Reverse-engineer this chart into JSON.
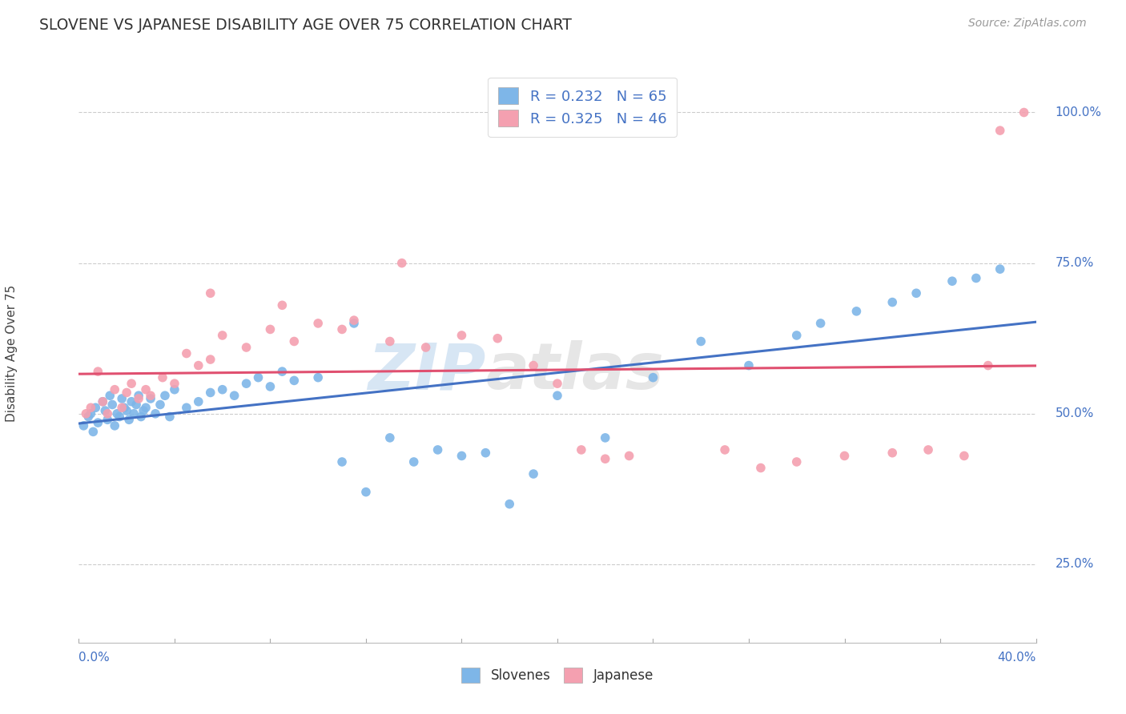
{
  "title": "SLOVENE VS JAPANESE DISABILITY AGE OVER 75 CORRELATION CHART",
  "source": "Source: ZipAtlas.com",
  "ylabel": "Disability Age Over 75",
  "xlim": [
    0.0,
    40.0
  ],
  "ylim": [
    12.0,
    108.0
  ],
  "ytick_vals": [
    25.0,
    50.0,
    75.0,
    100.0
  ],
  "ytick_labels": [
    "25.0%",
    "50.0%",
    "75.0%",
    "100.0%"
  ],
  "slovene_color": "#7EB6E8",
  "japanese_color": "#F4A0B0",
  "slovene_line_color": "#4472C4",
  "japanese_line_color": "#E05070",
  "slovene_R": 0.232,
  "slovene_N": 65,
  "japanese_R": 0.325,
  "japanese_N": 46,
  "legend_label_slovene": "Slovenes",
  "legend_label_japanese": "Japanese",
  "watermark_zip": "ZIP",
  "watermark_atlas": "atlas",
  "background_color": "#FFFFFF",
  "slovene_x": [
    0.2,
    0.4,
    0.5,
    0.6,
    0.7,
    0.8,
    1.0,
    1.1,
    1.2,
    1.3,
    1.4,
    1.5,
    1.6,
    1.7,
    1.8,
    1.9,
    2.0,
    2.1,
    2.2,
    2.3,
    2.4,
    2.5,
    2.6,
    2.7,
    2.8,
    3.0,
    3.2,
    3.4,
    3.6,
    3.8,
    4.0,
    4.5,
    5.0,
    5.5,
    6.0,
    6.5,
    7.0,
    7.5,
    8.0,
    8.5,
    9.0,
    10.0,
    11.0,
    12.0,
    13.0,
    14.0,
    15.0,
    16.0,
    17.0,
    18.0,
    19.0,
    20.0,
    22.0,
    24.0,
    26.0,
    28.0,
    30.0,
    31.0,
    32.5,
    34.0,
    35.0,
    36.5,
    37.5,
    38.5,
    11.5
  ],
  "slovene_y": [
    48.0,
    49.5,
    50.0,
    47.0,
    51.0,
    48.5,
    52.0,
    50.5,
    49.0,
    53.0,
    51.5,
    48.0,
    50.0,
    49.5,
    52.5,
    51.0,
    50.5,
    49.0,
    52.0,
    50.0,
    51.5,
    53.0,
    49.5,
    50.5,
    51.0,
    52.5,
    50.0,
    51.5,
    53.0,
    49.5,
    54.0,
    51.0,
    52.0,
    53.5,
    54.0,
    53.0,
    55.0,
    56.0,
    54.5,
    57.0,
    55.5,
    56.0,
    42.0,
    37.0,
    46.0,
    42.0,
    44.0,
    43.0,
    43.5,
    35.0,
    40.0,
    53.0,
    46.0,
    56.0,
    62.0,
    58.0,
    63.0,
    65.0,
    67.0,
    68.5,
    70.0,
    72.0,
    72.5,
    74.0,
    65.0
  ],
  "japanese_x": [
    0.3,
    0.5,
    0.8,
    1.0,
    1.2,
    1.5,
    1.8,
    2.0,
    2.2,
    2.5,
    2.8,
    3.0,
    3.5,
    4.0,
    4.5,
    5.0,
    5.5,
    6.0,
    7.0,
    8.0,
    9.0,
    10.0,
    11.0,
    11.5,
    13.0,
    14.5,
    16.0,
    17.5,
    19.0,
    20.0,
    21.0,
    22.0,
    23.0,
    5.5,
    8.5,
    13.5,
    27.0,
    28.5,
    30.0,
    32.0,
    34.0,
    35.5,
    37.0,
    38.0,
    38.5,
    39.5
  ],
  "japanese_y": [
    50.0,
    51.0,
    57.0,
    52.0,
    50.0,
    54.0,
    51.0,
    53.5,
    55.0,
    52.5,
    54.0,
    53.0,
    56.0,
    55.0,
    60.0,
    58.0,
    59.0,
    63.0,
    61.0,
    64.0,
    62.0,
    65.0,
    64.0,
    65.5,
    62.0,
    61.0,
    63.0,
    62.5,
    58.0,
    55.0,
    44.0,
    42.5,
    43.0,
    70.0,
    68.0,
    75.0,
    44.0,
    41.0,
    42.0,
    43.0,
    43.5,
    44.0,
    43.0,
    58.0,
    97.0,
    100.0
  ]
}
